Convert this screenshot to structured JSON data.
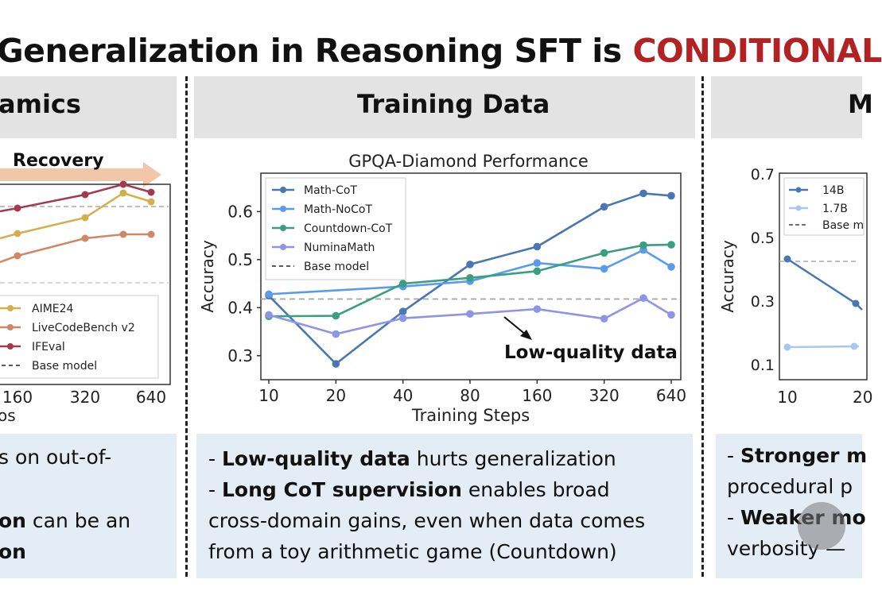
{
  "title": {
    "text": "Generalization in Reasoning SFT is ",
    "accent": "CONDITIONAL"
  },
  "panels": {
    "left": {
      "header": "amics",
      "annotation": "Recovery",
      "legend": [
        "AIME24",
        "LiveCodeBench v2",
        "IFEval",
        "Base model"
      ],
      "ticks": [
        "160",
        "320",
        "640"
      ],
      "xlabel_fragment": "os",
      "lines": [
        {
          "text": "s on out-of-"
        },
        {
          "bold": "on",
          "text": " can be an"
        },
        {
          "bold": "on",
          "text": ""
        }
      ]
    },
    "middle": {
      "header": "Training Data",
      "lines": [
        {
          "prefix": "- ",
          "bold": "Low-quality data",
          "text": " hurts generalization"
        },
        {
          "prefix": "- ",
          "bold": "Long CoT supervision",
          "text": " enables broad"
        },
        {
          "prefix": "",
          "bold": "",
          "text": "cross-domain gains, even when data comes"
        },
        {
          "prefix": "",
          "bold": "",
          "text": "from a toy arithmetic game (Countdown)"
        }
      ]
    },
    "right": {
      "header": "M",
      "legend": [
        "14B",
        "1.7B",
        "Base m"
      ],
      "yticks": [
        "0.7",
        "0.5",
        "0.3",
        "0.1"
      ],
      "ylabel": "Accuracy",
      "xticks": [
        "10",
        "20"
      ],
      "lines": [
        {
          "prefix": "- ",
          "bold": "Stronger m",
          "text": ""
        },
        {
          "prefix": "",
          "bold": "",
          "text": "procedural p"
        },
        {
          "prefix": "- ",
          "bold": "Weaker mo",
          "text": ""
        },
        {
          "prefix": "",
          "bold": "",
          "text": "verbosity —"
        }
      ]
    }
  },
  "colors": {
    "title_accent": "#b22222",
    "header_band": "#e3e3e3",
    "text_box": "#e4ecf5",
    "left_aime": "#d4b04a",
    "left_lcb": "#d08766",
    "left_ifeval": "#a33a4f",
    "left_recovery_arrow": "#f2c6a8"
  },
  "chart_data": {
    "type": "line",
    "title": "GPQA-Diamond Performance",
    "xlabel": "Training Steps",
    "ylabel": "Accuracy",
    "x": [
      "10",
      "20",
      "40",
      "80",
      "160",
      "320",
      "640"
    ],
    "yticks": [
      0.3,
      0.4,
      0.5,
      0.6
    ],
    "ylim": [
      0.25,
      0.68
    ],
    "legend_position": "top-left",
    "grid": false,
    "series": [
      {
        "name": "Math-CoT",
        "color": "#4a77b4",
        "points": [
          [
            10,
            0.425
          ],
          [
            20,
            0.283
          ],
          [
            40,
            0.392
          ],
          [
            80,
            0.49
          ],
          [
            160,
            0.527
          ],
          [
            320,
            0.61
          ],
          [
            480,
            0.638
          ],
          [
            640,
            0.633
          ]
        ]
      },
      {
        "name": "Math-NoCoT",
        "color": "#5b9bec",
        "points": [
          [
            10,
            0.428
          ],
          [
            40,
            0.444
          ],
          [
            80,
            0.455
          ],
          [
            160,
            0.493
          ],
          [
            320,
            0.481
          ],
          [
            480,
            0.52
          ],
          [
            640,
            0.485
          ]
        ]
      },
      {
        "name": "Countdown-CoT",
        "color": "#3c9e80",
        "points": [
          [
            10,
            0.382
          ],
          [
            20,
            0.383
          ],
          [
            40,
            0.45
          ],
          [
            80,
            0.462
          ],
          [
            160,
            0.476
          ],
          [
            320,
            0.514
          ],
          [
            480,
            0.53
          ],
          [
            640,
            0.531
          ]
        ]
      },
      {
        "name": "NuminaMath",
        "color": "#8c95e6",
        "points": [
          [
            10,
            0.385
          ],
          [
            20,
            0.345
          ],
          [
            40,
            0.378
          ],
          [
            80,
            0.387
          ],
          [
            160,
            0.397
          ],
          [
            320,
            0.377
          ],
          [
            480,
            0.42
          ],
          [
            640,
            0.385
          ]
        ]
      }
    ],
    "baseline": {
      "name": "Base model",
      "value": 0.418
    },
    "annotation": "Low-quality data"
  }
}
